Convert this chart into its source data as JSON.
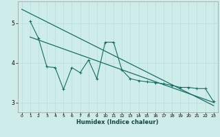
{
  "xlabel": "Humidex (Indice chaleur)",
  "bg_color": "#cdecea",
  "grid_color": "#b8ddd9",
  "line_color": "#1a6b62",
  "xlim": [
    -0.5,
    23.5
  ],
  "ylim": [
    2.75,
    5.55
  ],
  "yticks": [
    3,
    4,
    5
  ],
  "xticks": [
    0,
    1,
    2,
    3,
    4,
    5,
    6,
    7,
    8,
    9,
    10,
    11,
    12,
    13,
    14,
    15,
    16,
    17,
    18,
    19,
    20,
    21,
    22,
    23
  ],
  "line1_x": [
    0,
    23
  ],
  "line1_y": [
    5.35,
    2.92
  ],
  "line2_x": [
    1,
    23
  ],
  "line2_y": [
    4.65,
    3.0
  ],
  "line3_x": [
    1,
    2,
    3,
    4,
    5,
    6,
    7,
    8,
    9,
    10,
    11,
    12,
    13,
    14,
    15,
    16,
    17,
    18,
    19,
    20,
    21,
    22,
    23
  ],
  "line3_y": [
    5.05,
    4.62,
    3.9,
    3.88,
    3.33,
    3.88,
    3.75,
    4.07,
    3.6,
    4.52,
    4.52,
    3.82,
    3.6,
    3.55,
    3.52,
    3.5,
    3.47,
    3.43,
    3.38,
    3.38,
    3.35,
    3.35,
    3.02
  ]
}
